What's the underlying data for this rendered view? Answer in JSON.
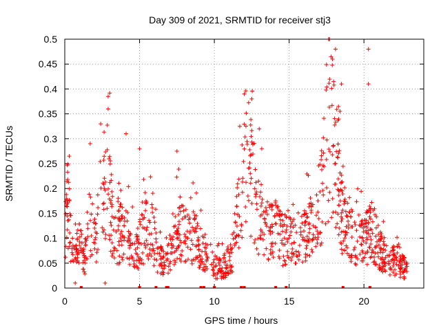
{
  "chart_data": {
    "type": "scatter",
    "title": "Day 309 of 2021, SRMTID for receiver stj3",
    "xlabel": "GPS time / hours",
    "ylabel": "SRMTID / TECUs",
    "xlim": [
      0,
      24
    ],
    "ylim": [
      0,
      0.5
    ],
    "x_ticks": [
      0,
      5,
      10,
      15,
      20
    ],
    "x_tick_labels": [
      "0",
      "5",
      "10",
      "15",
      "20"
    ],
    "y_ticks": [
      0,
      0.05,
      0.1,
      0.15,
      0.2,
      0.25,
      0.3,
      0.35,
      0.4,
      0.45,
      0.5
    ],
    "y_tick_labels": [
      "0",
      "0.05",
      "0.1",
      "0.15",
      "0.2",
      "0.25",
      "0.3",
      "0.35",
      "0.4",
      "0.45",
      "0.5"
    ],
    "grid": true,
    "series": [
      {
        "name": "SRMTID",
        "marker": "plus",
        "color": "#ff0000",
        "cluster_profile": [
          {
            "x": 0.05,
            "y": 0.13
          },
          {
            "x": 0.2,
            "y": 0.17
          },
          {
            "x": 0.4,
            "y": 0.1
          },
          {
            "x": 0.6,
            "y": 0.05
          },
          {
            "x": 1.0,
            "y": 0.09
          },
          {
            "x": 1.3,
            "y": 0.05
          },
          {
            "x": 1.6,
            "y": 0.13
          },
          {
            "x": 2.0,
            "y": 0.1
          },
          {
            "x": 2.5,
            "y": 0.16
          },
          {
            "x": 2.9,
            "y": 0.22
          },
          {
            "x": 3.3,
            "y": 0.09
          },
          {
            "x": 3.7,
            "y": 0.11
          },
          {
            "x": 4.2,
            "y": 0.1
          },
          {
            "x": 4.7,
            "y": 0.07
          },
          {
            "x": 5.2,
            "y": 0.1
          },
          {
            "x": 5.7,
            "y": 0.13
          },
          {
            "x": 6.2,
            "y": 0.06
          },
          {
            "x": 6.7,
            "y": 0.05
          },
          {
            "x": 7.2,
            "y": 0.08
          },
          {
            "x": 7.7,
            "y": 0.12
          },
          {
            "x": 8.2,
            "y": 0.1
          },
          {
            "x": 8.7,
            "y": 0.1
          },
          {
            "x": 9.2,
            "y": 0.07
          },
          {
            "x": 9.7,
            "y": 0.05
          },
          {
            "x": 10.2,
            "y": 0.04
          },
          {
            "x": 10.7,
            "y": 0.045
          },
          {
            "x": 11.2,
            "y": 0.07
          },
          {
            "x": 11.6,
            "y": 0.15
          },
          {
            "x": 12.1,
            "y": 0.26
          },
          {
            "x": 12.5,
            "y": 0.22
          },
          {
            "x": 13.0,
            "y": 0.14
          },
          {
            "x": 13.5,
            "y": 0.12
          },
          {
            "x": 14.0,
            "y": 0.13
          },
          {
            "x": 14.5,
            "y": 0.1
          },
          {
            "x": 15.0,
            "y": 0.09
          },
          {
            "x": 15.5,
            "y": 0.1
          },
          {
            "x": 16.0,
            "y": 0.11
          },
          {
            "x": 16.5,
            "y": 0.12
          },
          {
            "x": 17.0,
            "y": 0.13
          },
          {
            "x": 17.5,
            "y": 0.3
          },
          {
            "x": 18.0,
            "y": 0.28
          },
          {
            "x": 18.5,
            "y": 0.15
          },
          {
            "x": 19.0,
            "y": 0.11
          },
          {
            "x": 19.5,
            "y": 0.1
          },
          {
            "x": 20.0,
            "y": 0.09
          },
          {
            "x": 20.5,
            "y": 0.12
          },
          {
            "x": 21.0,
            "y": 0.08
          },
          {
            "x": 21.5,
            "y": 0.06
          },
          {
            "x": 22.0,
            "y": 0.055
          },
          {
            "x": 22.5,
            "y": 0.04
          },
          {
            "x": 22.9,
            "y": 0.045
          }
        ],
        "notable_points": [
          {
            "x": 18.1,
            "y": 0.48
          },
          {
            "x": 20.3,
            "y": 0.48
          },
          {
            "x": 17.8,
            "y": 0.465
          },
          {
            "x": 17.9,
            "y": 0.46
          },
          {
            "x": 18.5,
            "y": 0.41
          },
          {
            "x": 20.3,
            "y": 0.41
          },
          {
            "x": 12.0,
            "y": 0.39
          },
          {
            "x": 12.5,
            "y": 0.38
          },
          {
            "x": 2.9,
            "y": 0.385
          },
          {
            "x": 2.9,
            "y": 0.36
          },
          {
            "x": 4.1,
            "y": 0.31
          },
          {
            "x": 2.4,
            "y": 0.33
          },
          {
            "x": 1.7,
            "y": 0.29
          },
          {
            "x": 0.3,
            "y": 0.265
          },
          {
            "x": 5.0,
            "y": 0.28
          },
          {
            "x": 7.5,
            "y": 0.275
          },
          {
            "x": 11.7,
            "y": 0.325
          },
          {
            "x": 13.0,
            "y": 0.32
          },
          {
            "x": 0.7,
            "y": 0.01
          },
          {
            "x": 2.7,
            "y": 0.01
          }
        ],
        "zero_points_x": [
          1.1,
          5.0,
          6.1,
          6.8,
          6.9,
          9.1,
          9.3,
          10.0,
          11.8,
          12.0,
          14.1,
          14.8,
          18.6,
          20.4
        ]
      }
    ]
  }
}
